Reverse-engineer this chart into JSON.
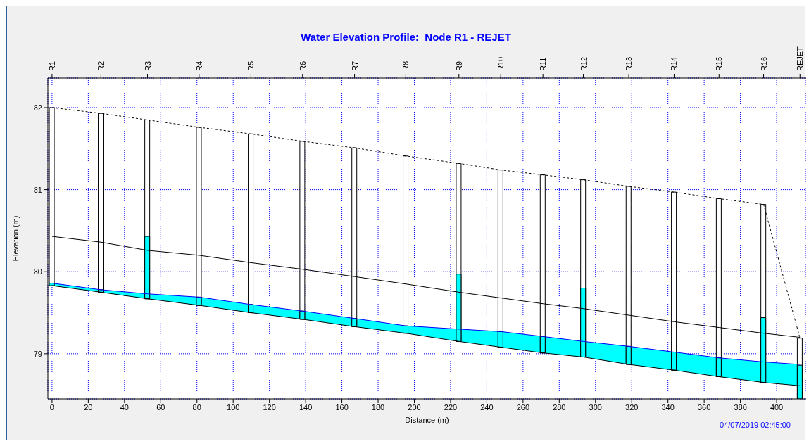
{
  "chart_data": {
    "type": "line",
    "title": "Water Elevation Profile:  Node R1 - REJET",
    "xlabel": "Distance (m)",
    "ylabel": "Elevation (m)",
    "annotations": [
      "04/07/2019 02:45:00",
      {
        "text": "R1",
        "x": 0
      },
      {
        "text": "R2",
        "x": 27.0
      },
      {
        "text": "R3",
        "x": 52.7
      },
      {
        "text": "R4",
        "x": 81.2
      },
      {
        "text": "R5",
        "x": 109.8
      },
      {
        "text": "R6",
        "x": 138.3
      },
      {
        "text": "R7",
        "x": 167.0
      },
      {
        "text": "R8",
        "x": 195.3
      },
      {
        "text": "R9",
        "x": 224.6
      },
      {
        "text": "R10",
        "x": 247.7
      },
      {
        "text": "R11",
        "x": 271.0
      },
      {
        "text": "R12",
        "x": 293.3
      },
      {
        "text": "R13",
        "x": 318.4
      },
      {
        "text": "R14",
        "x": 343.4
      },
      {
        "text": "R15",
        "x": 368.2
      },
      {
        "text": "R16",
        "x": 392.8
      },
      {
        "text": "REJET",
        "x": 412.9
      }
    ],
    "x": [
      0,
      27.0,
      52.7,
      81.2,
      109.8,
      138.3,
      167.0,
      195.3,
      224.6,
      247.7,
      271.0,
      293.3,
      318.4,
      343.4,
      368.2,
      392.8,
      412.9
    ],
    "xlim": [
      -2.3,
      416.3
    ],
    "xticks": [
      0,
      20,
      40,
      60,
      80,
      100,
      120,
      140,
      160,
      180,
      200,
      220,
      240,
      260,
      280,
      300,
      320,
      340,
      360,
      380,
      400
    ],
    "ylim": [
      78.45,
      82.36
    ],
    "yticks": [
      79,
      80,
      81,
      82
    ],
    "grid": true,
    "marker": "none",
    "series": [
      {
        "color": "#000000",
        "line_style": "dashed",
        "values": [
          82.0,
          81.93,
          81.85,
          81.76,
          81.68,
          81.59,
          81.51,
          81.41,
          81.32,
          81.24,
          81.18,
          81.12,
          81.04,
          80.97,
          80.89,
          80.82,
          79.19
        ]
      },
      {
        "color": "#000000",
        "line_style": "solid",
        "values": [
          80.43,
          80.36,
          80.26,
          80.2,
          80.11,
          80.03,
          79.94,
          79.85,
          79.75,
          79.68,
          79.61,
          79.55,
          79.47,
          79.39,
          79.32,
          79.25,
          79.2
        ]
      },
      {
        "color": "#0000ff",
        "line_style": "solid",
        "values": [
          79.86,
          79.78,
          79.73,
          79.69,
          79.6,
          79.52,
          79.43,
          79.34,
          79.3,
          79.27,
          79.21,
          79.15,
          79.09,
          79.02,
          78.95,
          78.9,
          78.87
        ],
        "lower": [
          79.83,
          79.75,
          79.67,
          79.59,
          79.5,
          79.42,
          79.33,
          79.25,
          79.15,
          79.08,
          79.01,
          78.96,
          78.87,
          78.8,
          78.72,
          78.65,
          78.61
        ],
        "upper": [
          79.86,
          79.78,
          79.73,
          79.69,
          79.6,
          79.52,
          79.43,
          79.34,
          79.3,
          79.27,
          79.21,
          79.15,
          79.09,
          79.02,
          78.95,
          78.9,
          78.87
        ]
      },
      {
        "color": "#000000",
        "line_style": "solid",
        "values": [
          79.83,
          79.75,
          79.67,
          79.59,
          79.5,
          79.42,
          79.33,
          79.25,
          79.15,
          79.08,
          79.01,
          78.96,
          78.87,
          78.8,
          78.72,
          78.65,
          78.61
        ]
      },
      {
        "type": "bar",
        "color": "#ffffff",
        "base": [
          79.83,
          79.75,
          79.67,
          79.59,
          79.5,
          79.42,
          79.33,
          79.25,
          79.15,
          79.08,
          79.01,
          78.96,
          78.87,
          78.8,
          78.72,
          78.65,
          78.45
        ],
        "values": [
          2.17,
          2.18,
          2.18,
          2.17,
          2.18,
          2.17,
          2.18,
          2.16,
          2.17,
          2.16,
          2.17,
          2.16,
          2.17,
          2.17,
          2.17,
          2.17,
          0.74
        ]
      },
      {
        "type": "bar",
        "color": "#00ffff",
        "base": [
          79.83,
          79.75,
          79.67,
          79.59,
          79.5,
          79.42,
          79.33,
          79.25,
          79.15,
          79.08,
          79.01,
          78.96,
          78.87,
          78.8,
          78.72,
          78.65,
          78.45
        ],
        "values": [
          0.03,
          0.03,
          0.76,
          0.1,
          0.1,
          0.1,
          0.1,
          0.09,
          0.82,
          0.19,
          0.2,
          0.84,
          0.22,
          0.22,
          0.23,
          0.79,
          0.41
        ]
      }
    ]
  }
}
